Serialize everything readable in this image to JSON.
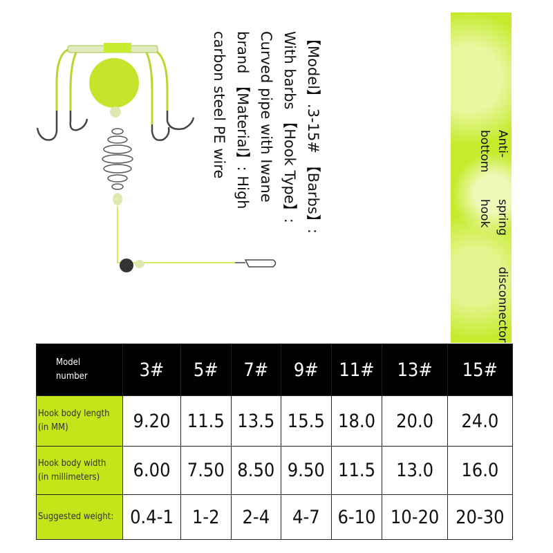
{
  "description_text": {
    "lines": [
      "【Model】.3-15# 【Barbs】:",
      "With barbs 【Hook Type】:",
      "Curved pipe with Iwane",
      "brand 【Material】: High",
      "carbon steel PE wire"
    ]
  },
  "panel": {
    "lines": [
      "Anti-bottom",
      "spring hook",
      "disconnector"
    ],
    "color": "#c6ea2c"
  },
  "table": {
    "header_label": [
      "Model",
      "number"
    ],
    "models": [
      "3#",
      "5#",
      "7#",
      "9#",
      "11#",
      "13#",
      "15#"
    ],
    "rows": [
      {
        "label": [
          "Hook body length",
          "(in MM)"
        ],
        "values": [
          "9.20",
          "11.5",
          "13.5",
          "15.5",
          "18.0",
          "20.0",
          "24.0"
        ]
      },
      {
        "label": [
          "Hook body width",
          "(in millimeters)"
        ],
        "values": [
          "6.00",
          "7.50",
          "8.50",
          "9.50",
          "11.5",
          "13.0",
          "16.0"
        ]
      },
      {
        "label": [
          "Suggested weight:"
        ],
        "values": [
          "0.4-1",
          "1-2",
          "2-4",
          "4-7",
          "6-10",
          "10-20",
          "20-30"
        ]
      }
    ]
  }
}
